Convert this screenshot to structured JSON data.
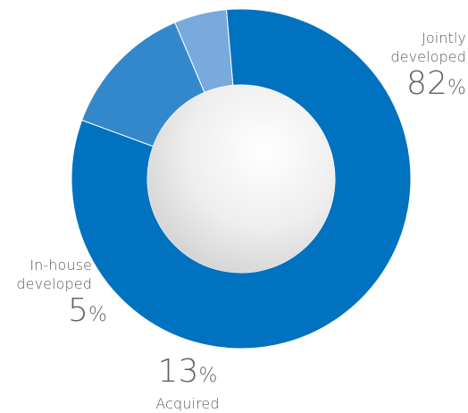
{
  "chart_data": {
    "type": "donut",
    "title": "",
    "categories": [
      "Jointly developed",
      "Acquired",
      "In-house developed"
    ],
    "values": [
      82,
      13,
      5
    ],
    "unit": "%",
    "colors": [
      "#0072c0",
      "#3388cc",
      "#79aadd"
    ],
    "labels": [
      {
        "line1": "Jointly",
        "line2": "developed",
        "value": "82",
        "unit": "%"
      },
      {
        "line1": "Acquired",
        "value": "13",
        "unit": "%"
      },
      {
        "line1": "In-house",
        "line2": "developed",
        "value": "5",
        "unit": "%"
      }
    ],
    "legend": "none",
    "grid": false
  }
}
